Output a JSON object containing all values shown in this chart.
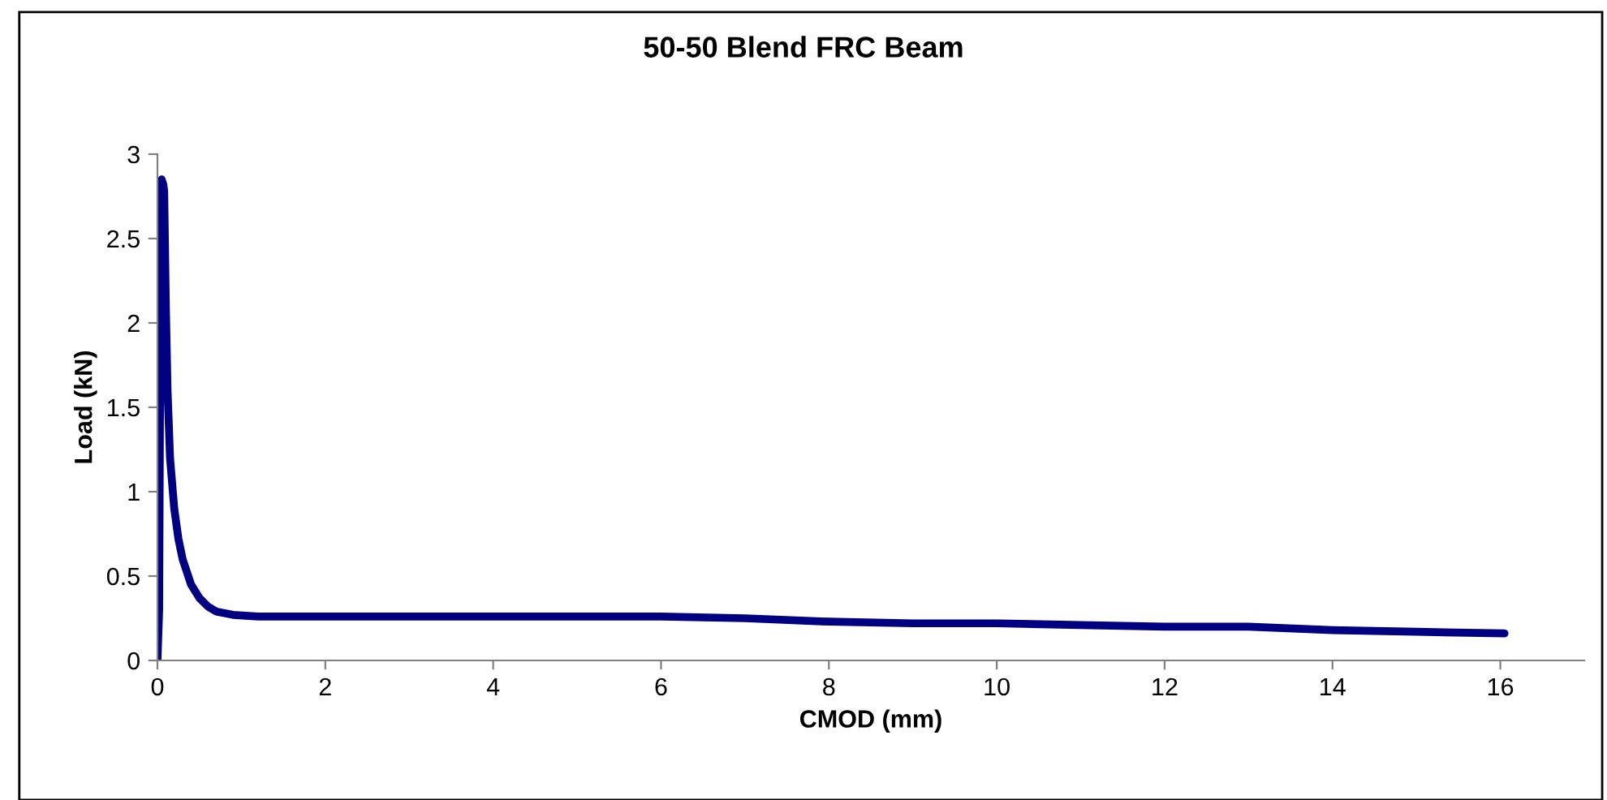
{
  "chart_data": {
    "type": "line",
    "title": "50-50 Blend FRC Beam",
    "xlabel": "CMOD (mm)",
    "ylabel": "Load (kN)",
    "xlim": [
      0,
      17
    ],
    "xticks": [
      0,
      2,
      4,
      6,
      8,
      10,
      12,
      14,
      16
    ],
    "ylim": [
      0,
      3
    ],
    "yticks": [
      0,
      0.5,
      1,
      1.5,
      2,
      2.5,
      3
    ],
    "grid": false,
    "marker": "none",
    "line_style": "solid",
    "series": [
      {
        "color": "#000080",
        "x": [
          0,
          0.02,
          0.03,
          0.04,
          0.05,
          0.07,
          0.08,
          0.1,
          0.12,
          0.15,
          0.2,
          0.25,
          0.3,
          0.4,
          0.5,
          0.6,
          0.7,
          0.9,
          1.2,
          2,
          3,
          4,
          5,
          6,
          7,
          8,
          9,
          10,
          11,
          12,
          13,
          14,
          15,
          16.05
        ],
        "values": [
          0,
          0.3,
          1.5,
          2.5,
          2.85,
          2.82,
          2.78,
          2.1,
          1.6,
          1.2,
          0.9,
          0.72,
          0.6,
          0.45,
          0.37,
          0.32,
          0.29,
          0.27,
          0.26,
          0.26,
          0.26,
          0.26,
          0.26,
          0.26,
          0.25,
          0.23,
          0.22,
          0.22,
          0.21,
          0.2,
          0.2,
          0.18,
          0.17,
          0.16
        ]
      }
    ]
  }
}
